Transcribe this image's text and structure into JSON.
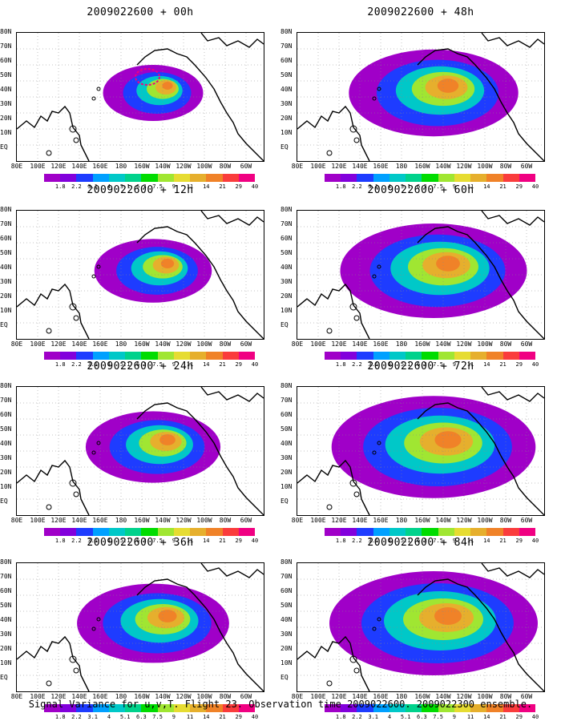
{
  "panels": [
    {
      "title": "2009022600 + 00h",
      "lead_hours": 0
    },
    {
      "title": "2009022600 + 48h",
      "lead_hours": 48
    },
    {
      "title": "2009022600 + 12h",
      "lead_hours": 12
    },
    {
      "title": "2009022600 + 60h",
      "lead_hours": 60
    },
    {
      "title": "2009022600 + 24h",
      "lead_hours": 24
    },
    {
      "title": "2009022600 + 72h",
      "lead_hours": 72
    },
    {
      "title": "2009022600 + 36h",
      "lead_hours": 36
    },
    {
      "title": "2009022600 + 84h",
      "lead_hours": 84
    }
  ],
  "lat_labels": [
    "80N",
    "70N",
    "60N",
    "50N",
    "40N",
    "30N",
    "20N",
    "10N",
    "EQ"
  ],
  "lon_labels": [
    "80E",
    "100E",
    "120E",
    "140E",
    "160E",
    "180",
    "160W",
    "140W",
    "120W",
    "100W",
    "80W",
    "60W"
  ],
  "colorbar": {
    "labels": [
      "1.8",
      "2.2",
      "3.1",
      "4",
      "5.1",
      "6.3",
      "7.5",
      "9",
      "11",
      "14",
      "21",
      "29",
      "40"
    ],
    "colors": [
      "#a000c8",
      "#8200dc",
      "#1e3cff",
      "#00a0ff",
      "#00c8c8",
      "#00d28c",
      "#00dc00",
      "#a0e632",
      "#e6dc32",
      "#e6af2d",
      "#f08228",
      "#fa3c3c",
      "#f00082"
    ]
  },
  "footer": "Signal Variance for u,v,T. Flight 23. Observation time 2009022600. 2009022300 ensemble."
}
